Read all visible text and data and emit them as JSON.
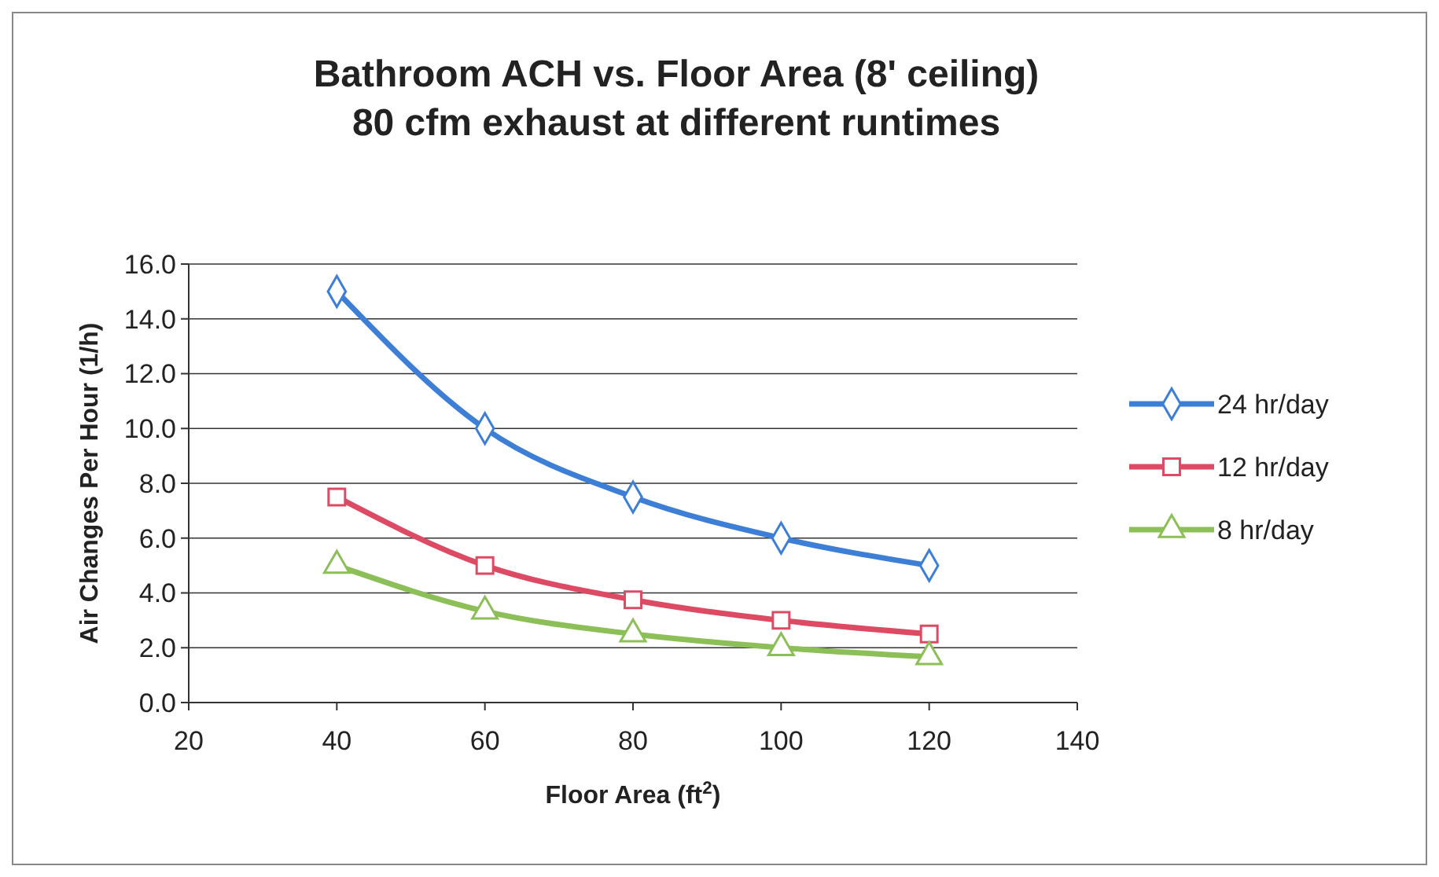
{
  "chart_data": {
    "type": "line",
    "title": "Bathroom ACH vs. Floor Area (8' ceiling)",
    "subtitle": "80 cfm exhaust at different runtimes",
    "xlabel": "Floor Area (ft$^{2}$)",
    "ylabel": "Air Changes Per Hour (1/h)",
    "x": [
      40,
      60,
      80,
      100,
      120
    ],
    "series": [
      {
        "name": "24 hr/day",
        "color": "#3d7fd6",
        "marker": "diamond",
        "values": [
          15,
          10,
          7.5,
          6,
          5
        ]
      },
      {
        "name": "12 hr/day",
        "color": "#dc4b63",
        "marker": "square",
        "values": [
          7.5,
          5,
          3.75,
          3,
          2.5
        ]
      },
      {
        "name": "8 hr/day",
        "color": "#8cbf57",
        "marker": "triangle",
        "values": [
          5,
          3.33,
          2.5,
          2,
          1.67
        ]
      }
    ],
    "xlim": [
      20,
      140
    ],
    "xticks": [
      20,
      40,
      60,
      80,
      100,
      120,
      140
    ],
    "ylim": [
      0,
      16
    ],
    "yticks": [
      {
        "value": 0,
        "label": "0.0"
      },
      {
        "value": 2,
        "label": "2.0"
      },
      {
        "value": 4,
        "label": "4.0"
      },
      {
        "value": 6,
        "label": "6.0"
      },
      {
        "value": 8,
        "label": "8.0"
      },
      {
        "value": 10,
        "label": "10.0"
      },
      {
        "value": 12,
        "label": "12.0"
      },
      {
        "value": 14,
        "label": "14.0"
      },
      {
        "value": 16,
        "label": "16.0"
      }
    ],
    "grid": "y",
    "legend": "right",
    "line_style": "solid"
  }
}
